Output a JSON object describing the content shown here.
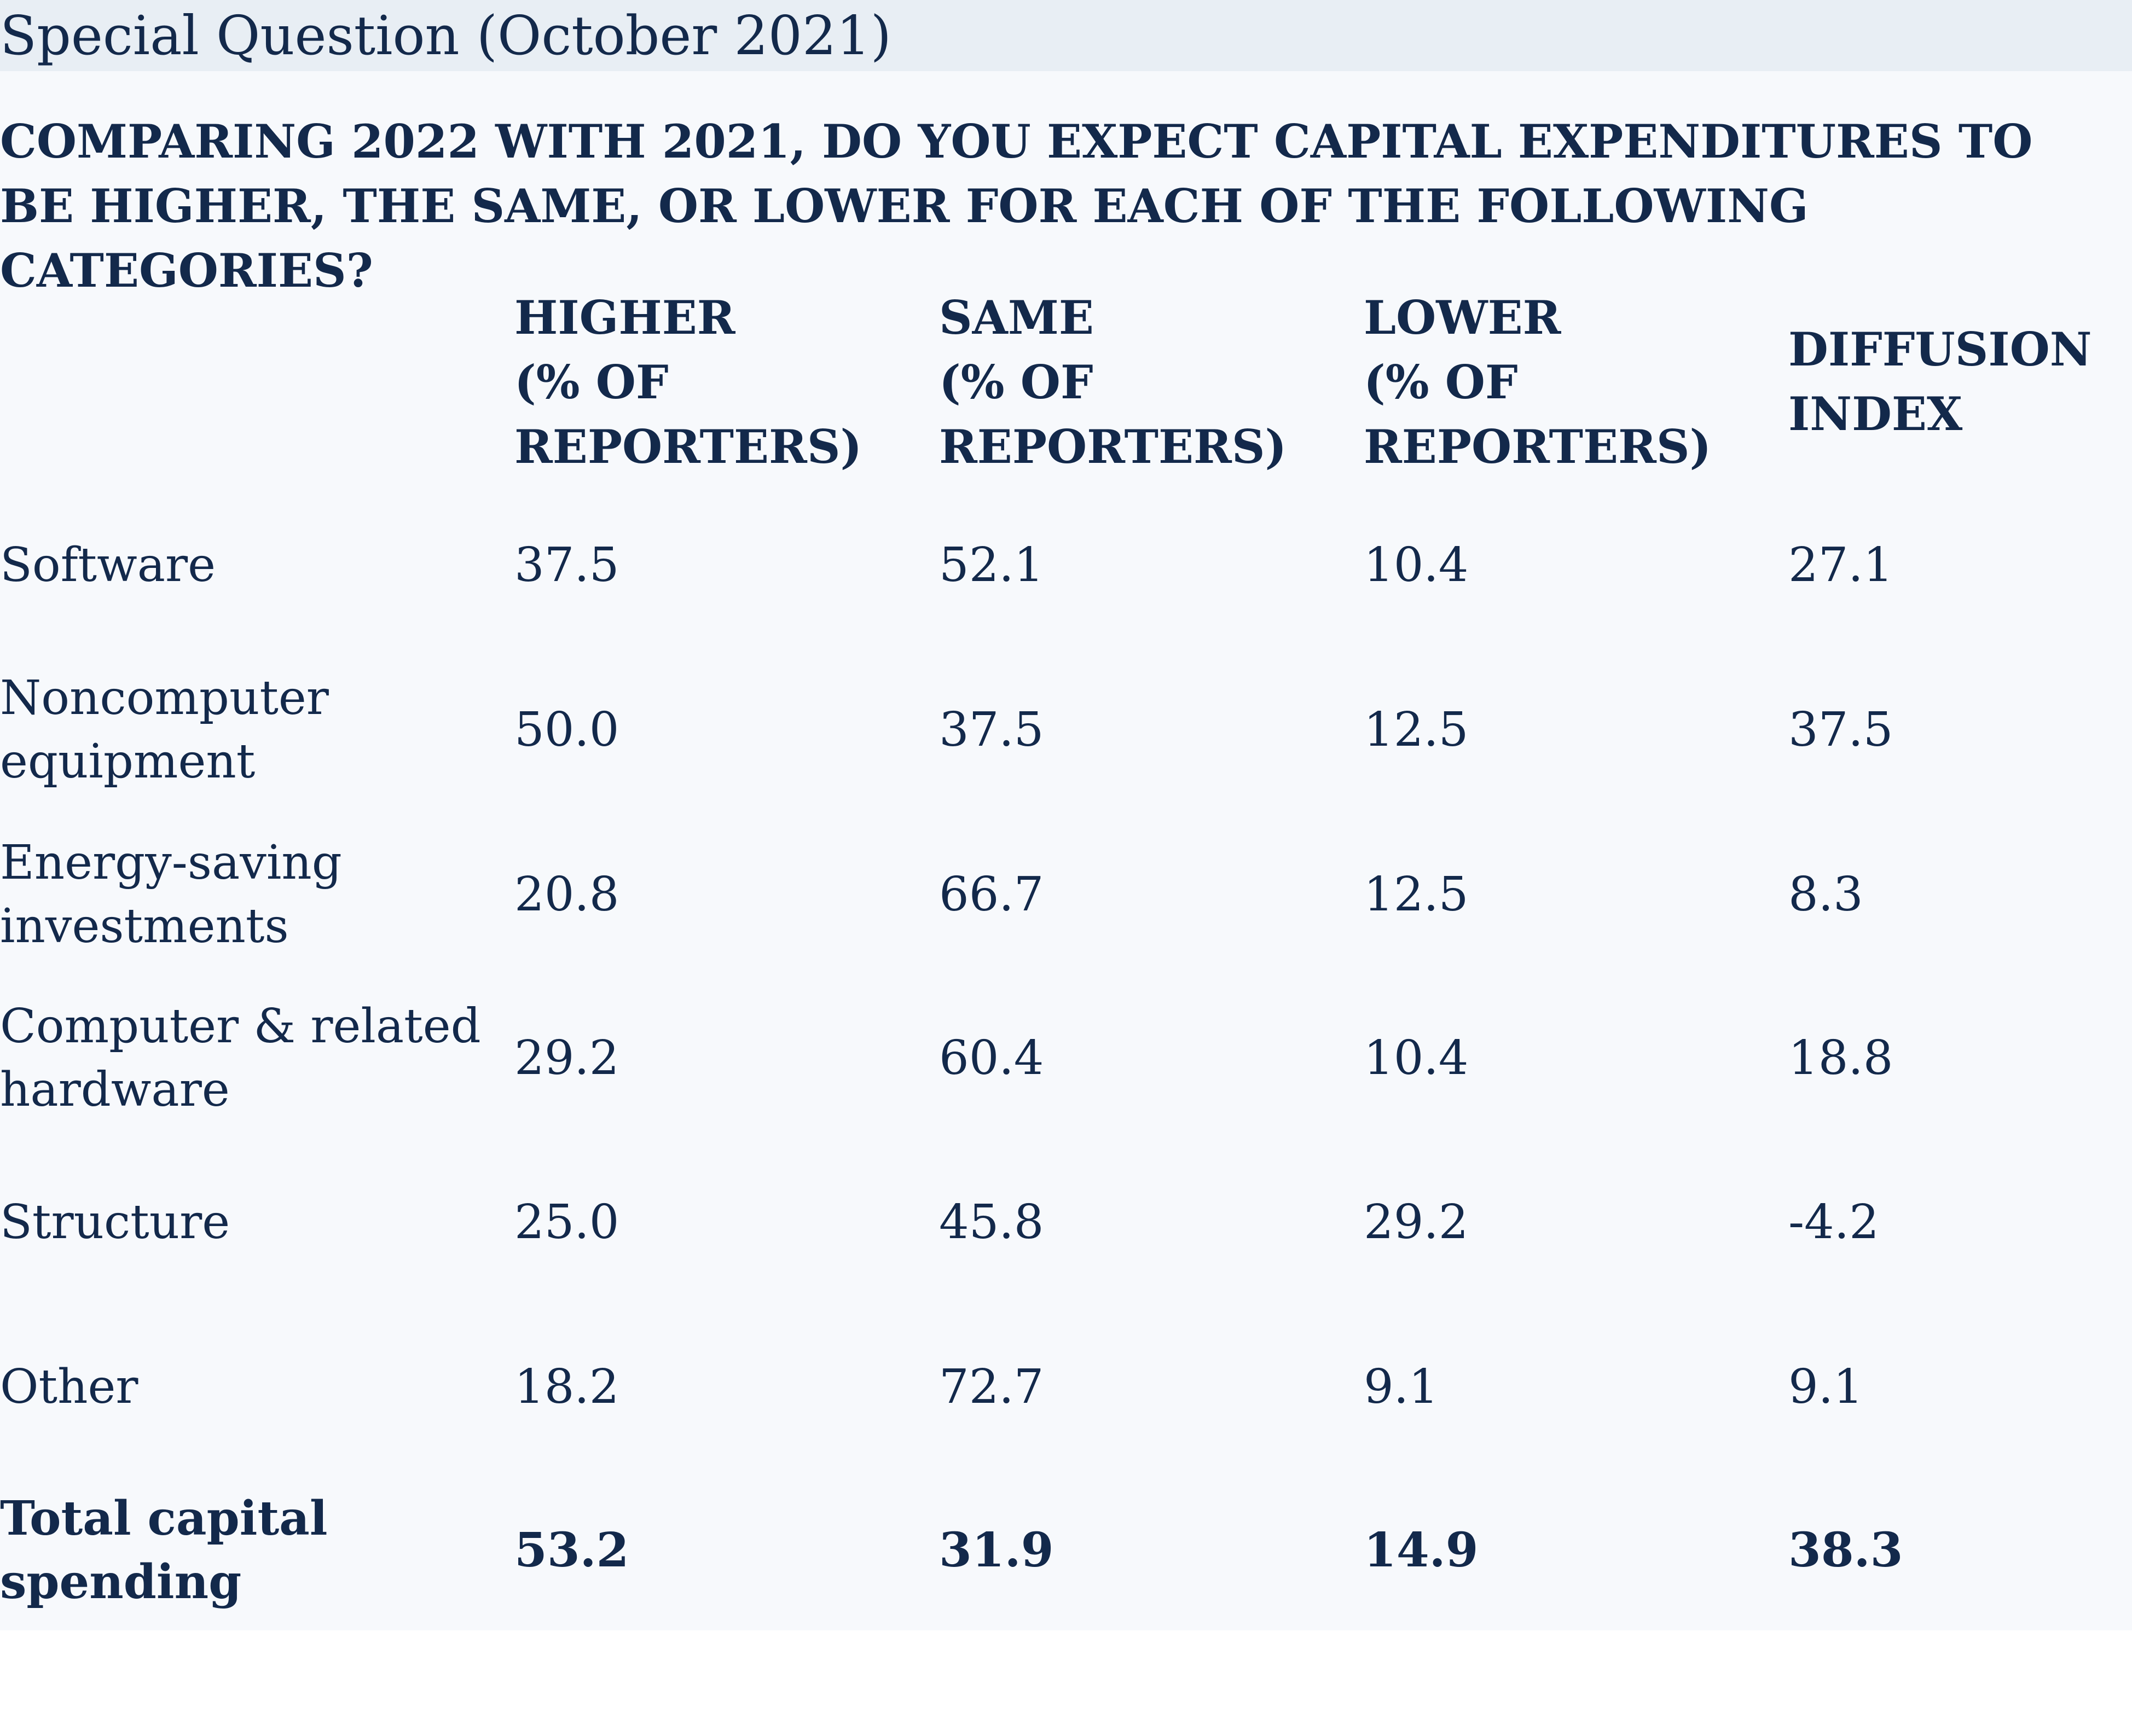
{
  "banner": "Special Question (October 2021)",
  "question": "COMPARING 2022 WITH 2021, DO YOU EXPECT CAPITAL EXPENDITURES TO BE HIGHER, THE SAME, OR LOWER FOR EACH OF THE FOLLOWING CATEGORIES?",
  "columns": {
    "higher": "HIGHER\n(% OF\nREPORTERS)",
    "same": "SAME\n(% OF\nREPORTERS)",
    "lower": "LOWER\n(% OF\nREPORTERS)",
    "diffusion": "DIFFUSION\nINDEX"
  },
  "rows": [
    {
      "label": "Software",
      "higher": "37.5",
      "same": "52.1",
      "lower": "10.4",
      "diffusion": "27.1"
    },
    {
      "label": "Noncomputer\nequipment",
      "higher": "50.0",
      "same": "37.5",
      "lower": "12.5",
      "diffusion": "37.5"
    },
    {
      "label": "Energy-saving\ninvestments",
      "higher": "20.8",
      "same": "66.7",
      "lower": "12.5",
      "diffusion": "8.3"
    },
    {
      "label": "Computer & related\nhardware",
      "higher": "29.2",
      "same": "60.4",
      "lower": "10.4",
      "diffusion": "18.8"
    },
    {
      "label": "Structure",
      "higher": "25.0",
      "same": "45.8",
      "lower": "29.2",
      "diffusion": "-4.2"
    },
    {
      "label": "Other",
      "higher": "18.2",
      "same": "72.7",
      "lower": "9.1",
      "diffusion": "9.1"
    },
    {
      "label": "Total capital\nspending",
      "higher": "53.2",
      "same": "31.9",
      "lower": "14.9",
      "diffusion": "38.3"
    }
  ]
}
